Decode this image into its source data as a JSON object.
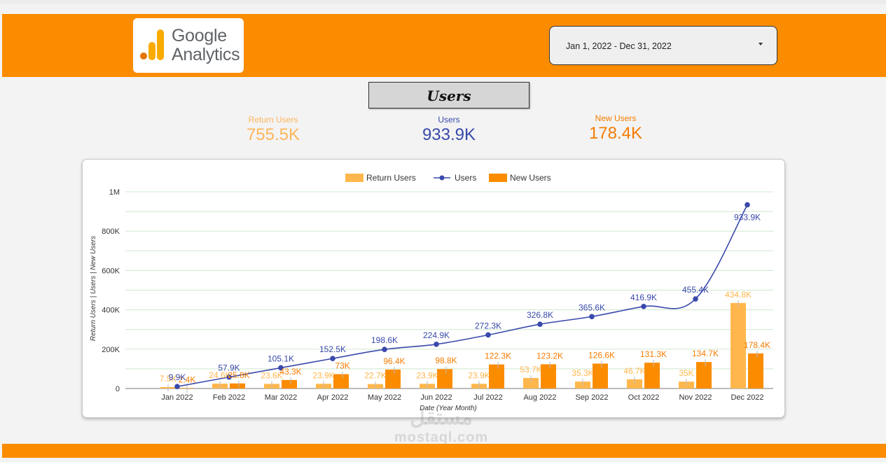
{
  "header": {
    "logo_text_line1": "Google",
    "logo_text_line2": "Analytics",
    "date_range": "Jan 1, 2022 - Dec 31, 2022"
  },
  "page_title": "Users",
  "kpis": [
    {
      "label": "Return Users",
      "value": "755.5K",
      "color": "#fdb55c"
    },
    {
      "label": "Users",
      "value": "933.9K",
      "color": "#3949ab"
    },
    {
      "label": "New Users",
      "value": "178.4K",
      "color": "#f57c00"
    }
  ],
  "colors": {
    "brand_orange": "#fb8c00",
    "return_users": "#ffb74d",
    "users": "#3949ab",
    "new_users": "#fb8c00",
    "new_users_label": "#f57c00"
  },
  "chart_data": {
    "type": "bar",
    "xlabel": "Date (Year Month)",
    "ylabel": "Return Users | Users | New Users",
    "ylim": [
      0,
      1000000
    ],
    "y_ticks": [
      0,
      200000,
      400000,
      600000,
      800000,
      1000000
    ],
    "y_tick_labels": [
      "0",
      "200K",
      "400K",
      "600K",
      "800K",
      "1M"
    ],
    "grid": true,
    "legend_position": "top-center",
    "categories": [
      "Jan 2022",
      "Feb 2022",
      "Mar 2022",
      "Apr 2022",
      "May 2022",
      "Jun 2022",
      "Jul 2022",
      "Aug 2022",
      "Sep 2022",
      "Oct 2022",
      "Nov 2022",
      "Dec 2022"
    ],
    "series": [
      {
        "name": "Return Users",
        "type": "bar",
        "values": [
          7500,
          24600,
          23600,
          23900,
          22700,
          23900,
          23900,
          53700,
          35300,
          46700,
          35000,
          434800
        ],
        "labels": [
          "7.5K",
          "24.6K",
          "23.6K",
          "23.9K",
          "22.7K",
          "23.9K",
          "23.9K",
          "53.7K",
          "35.3K",
          "46.7K",
          "35K",
          "434.8K"
        ]
      },
      {
        "name": "Users",
        "type": "line",
        "values": [
          9900,
          57900,
          105100,
          152500,
          198600,
          224900,
          272300,
          326800,
          365600,
          416900,
          455400,
          933900
        ],
        "labels": [
          "9.9K",
          "57.9K",
          "105.1K",
          "152.5K",
          "198.6K",
          "224.9K",
          "272.3K",
          "326.8K",
          "365.6K",
          "416.9K",
          "455.4K",
          "933.9K"
        ]
      },
      {
        "name": "New Users",
        "type": "bar",
        "values": [
          2400,
          25800,
          43300,
          73000,
          96400,
          98800,
          122300,
          123200,
          126600,
          131300,
          134700,
          178400
        ],
        "labels": [
          "2.4K",
          "25.8K",
          "43.3K",
          "73K",
          "96.4K",
          "98.8K",
          "122.3K",
          "123.2K",
          "126.6K",
          "131.3K",
          "134.7K",
          "178.4K"
        ]
      }
    ]
  },
  "watermark": {
    "line1": "مستقل",
    "line2": "mostaql.com"
  }
}
